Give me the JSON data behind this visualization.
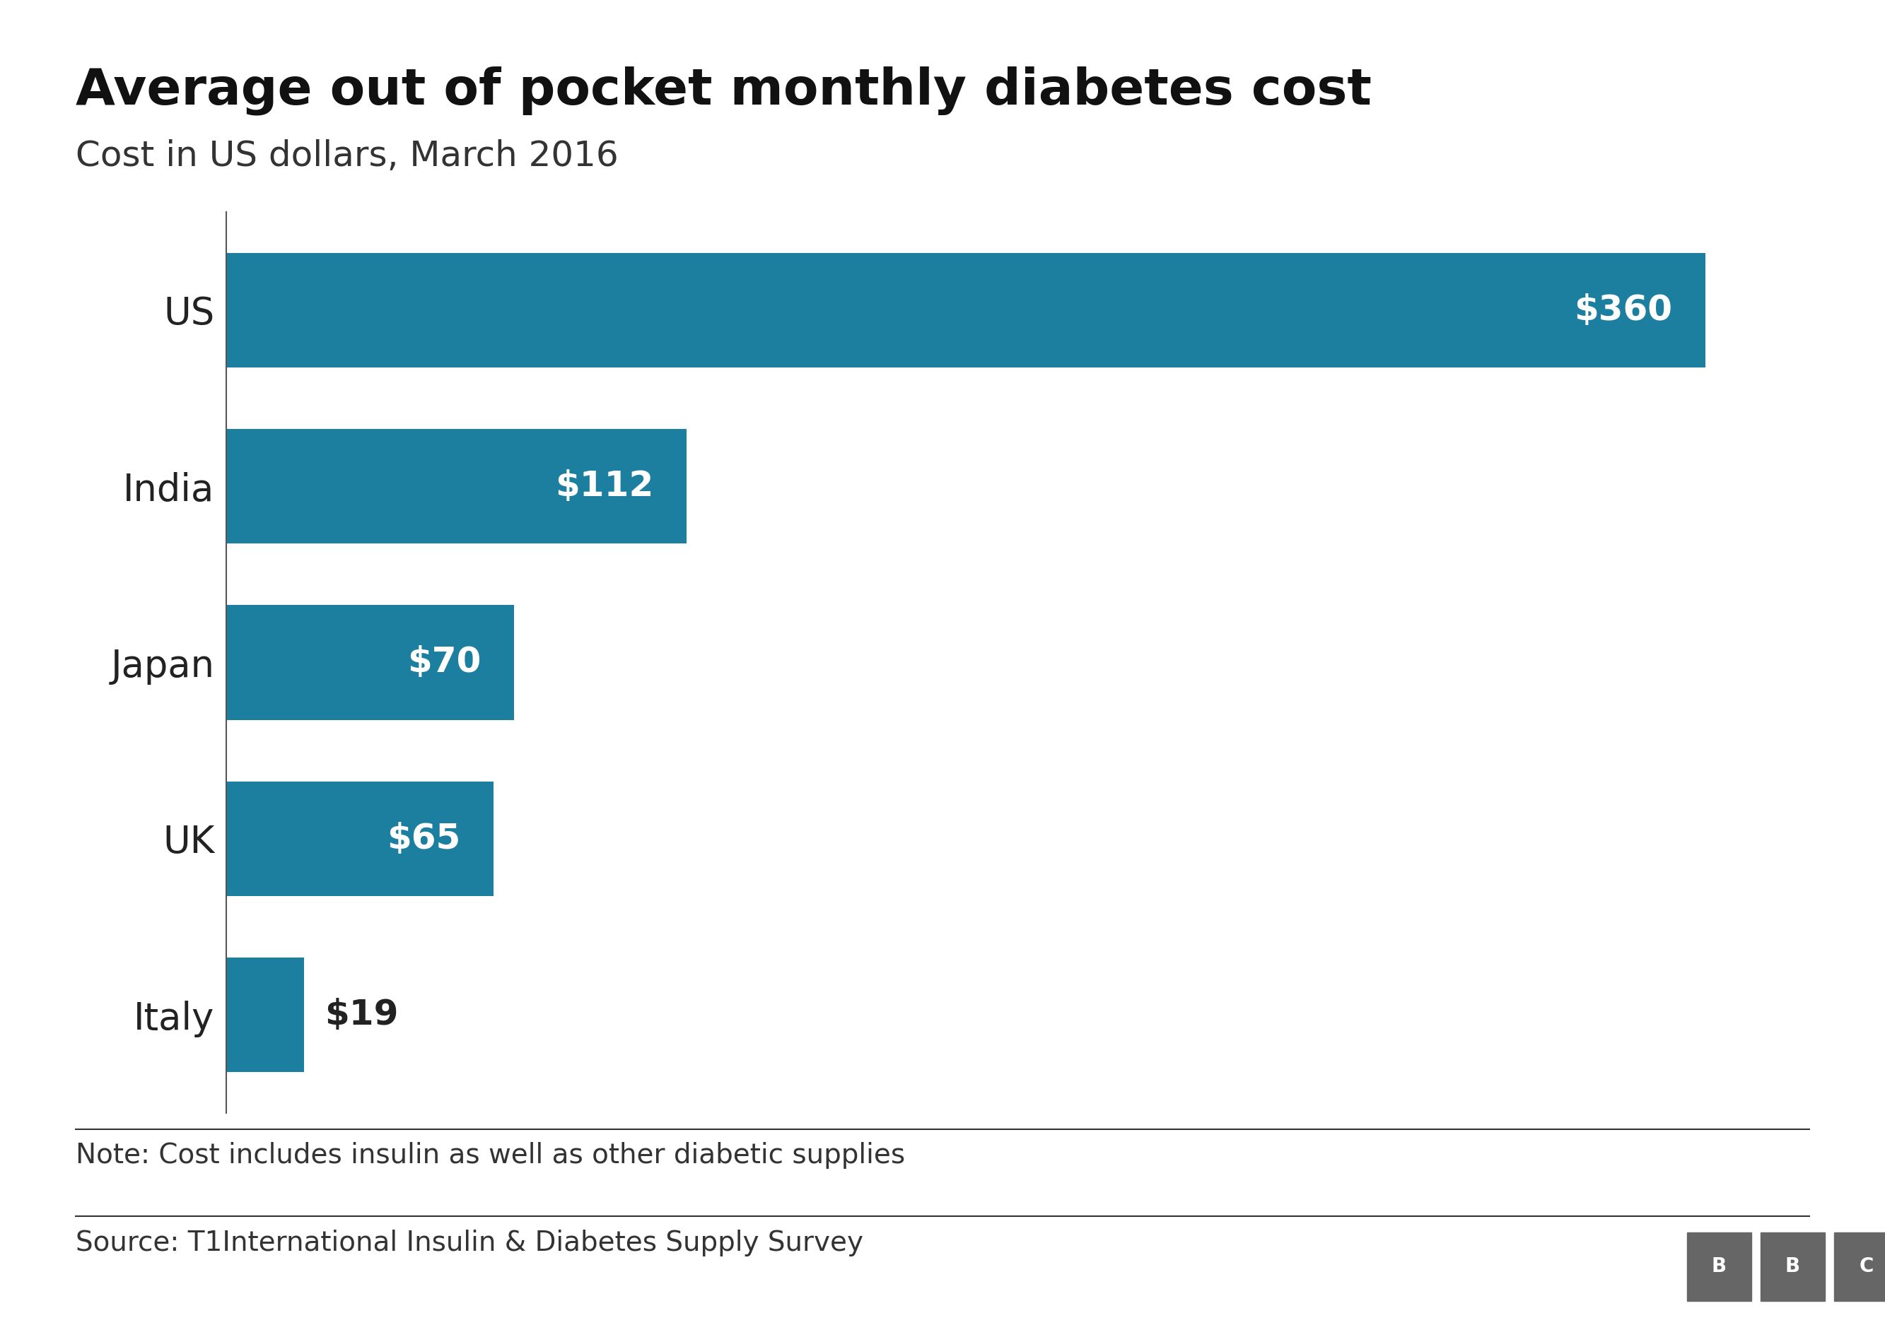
{
  "title": "Average out of pocket monthly diabetes cost",
  "subtitle": "Cost in US dollars, March 2016",
  "note": "Note: Cost includes insulin as well as other diabetic supplies",
  "source": "Source: T1International Insulin & Diabetes Supply Survey",
  "categories": [
    "US",
    "India",
    "Japan",
    "UK",
    "Italy"
  ],
  "values": [
    360,
    112,
    70,
    65,
    19
  ],
  "labels": [
    "$360",
    "$112",
    "$70",
    "$65",
    "$19"
  ],
  "bar_color": "#1d7fa0",
  "label_color_inside": "#ffffff",
  "label_color_outside": "#222222",
  "bg_color": "#ffffff",
  "title_fontsize": 52,
  "subtitle_fontsize": 36,
  "ytick_fontsize": 38,
  "label_fontsize": 36,
  "note_fontsize": 28,
  "source_fontsize": 28,
  "xlim": [
    0,
    390
  ],
  "bbc_letters": [
    "B",
    "B",
    "C"
  ]
}
